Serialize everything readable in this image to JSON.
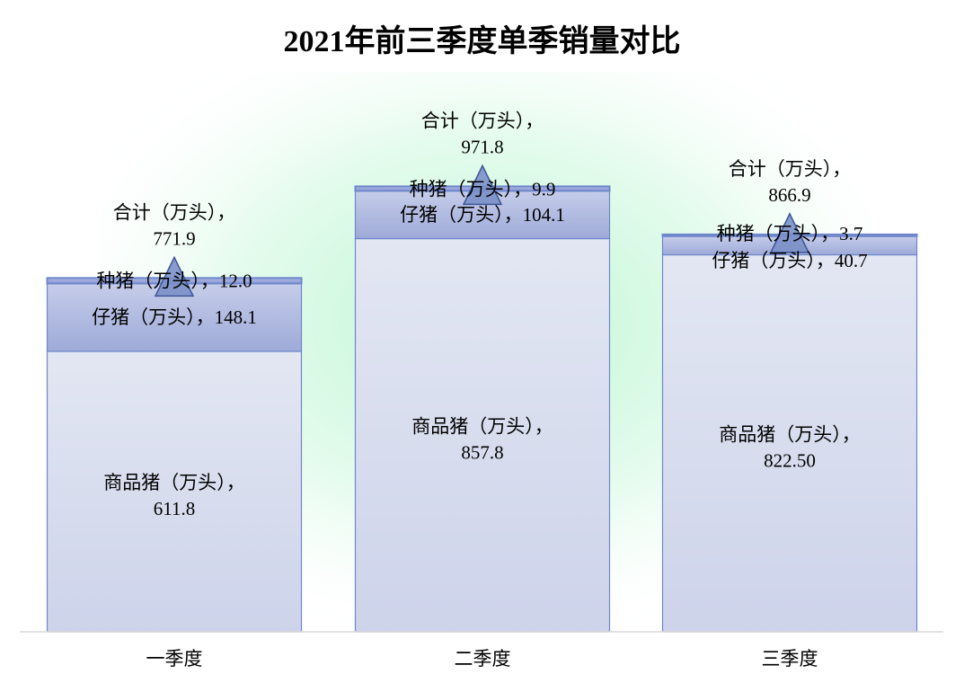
{
  "chart_data": {
    "type": "bar",
    "stacked": true,
    "title": "2021年前三季度单季销量对比",
    "categories": [
      "一季度",
      "二季度",
      "三季度"
    ],
    "series": [
      {
        "name": "商品猪（万头）",
        "values": [
          611.8,
          857.8,
          822.5
        ],
        "labels": [
          "611.8",
          "857.8",
          "822.50"
        ]
      },
      {
        "name": "仔猪（万头）",
        "values": [
          148.1,
          104.1,
          40.7
        ],
        "labels": [
          "148.1",
          "104.1",
          "40.7"
        ]
      },
      {
        "name": "种猪（万头）",
        "values": [
          12.0,
          9.9,
          3.7
        ],
        "labels": [
          "12.0",
          "9.9",
          "3.7"
        ]
      }
    ],
    "total": {
      "name": "合计（万头）",
      "values": [
        771.9,
        971.8,
        866.9
      ],
      "labels": [
        "771.9",
        "971.8",
        "866.9"
      ]
    },
    "ylim": [
      0,
      1200
    ],
    "grid": false,
    "legend": "none",
    "colors": {
      "commodity_fill_top": "#e3e7f3",
      "commodity_fill_bottom": "#cdd3ea",
      "piglet_fill_top": "#c6cdea",
      "piglet_fill_bottom": "#9eaad8",
      "breeding_fill": "#97a5d9",
      "bar_stroke": "#6f86cc",
      "total_marker": "#7b90c8",
      "background_glow": "#b8f5cf"
    }
  }
}
